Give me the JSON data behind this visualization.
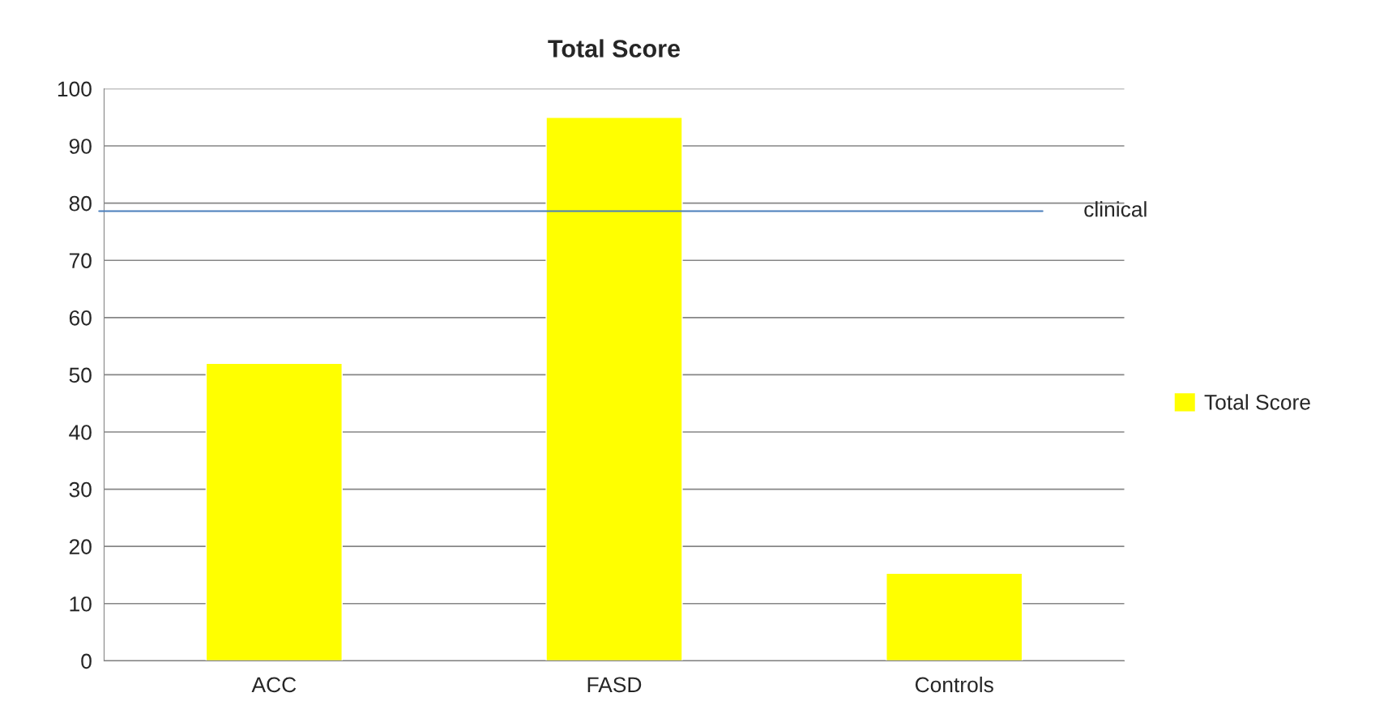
{
  "chart_data": {
    "type": "bar",
    "title": "Total Score",
    "categories": [
      "ACC",
      "FASD",
      "Controls"
    ],
    "series": [
      {
        "name": "Total Score",
        "color": "#ffff00",
        "values": [
          52,
          95,
          15.3
        ]
      }
    ],
    "ylim": [
      0,
      100
    ],
    "yticks": [
      0,
      10,
      20,
      30,
      40,
      50,
      60,
      70,
      80,
      90,
      100
    ],
    "grid": "y",
    "legend": "right",
    "ref_lines": [
      {
        "axis": "y",
        "value": 78.6,
        "label": "clinical",
        "color": "#4a7ebb"
      }
    ]
  }
}
